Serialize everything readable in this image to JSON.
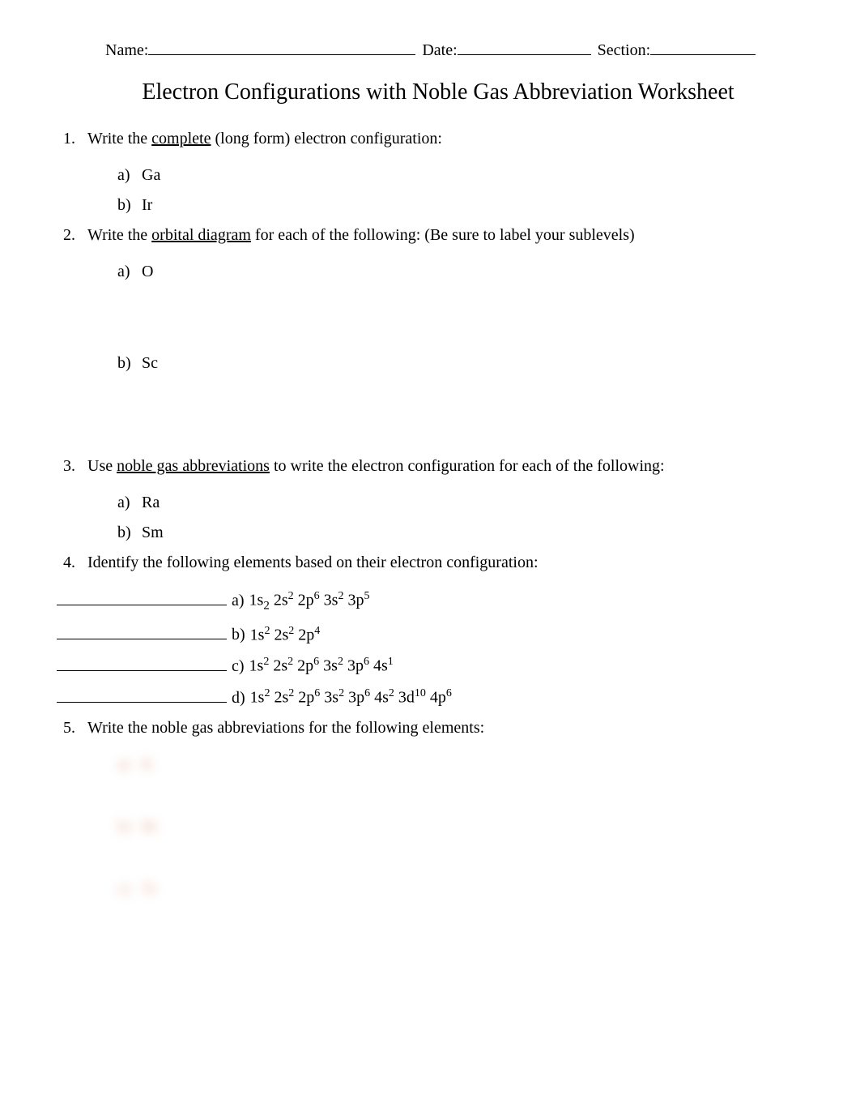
{
  "header": {
    "name_label": "Name:",
    "date_label": "Date:",
    "section_label": "Section:",
    "name_underline_width": 330,
    "date_underline_width": 165,
    "section_underline_width": 130
  },
  "title": "Electron Configurations with Noble Gas Abbreviation Worksheet",
  "q1": {
    "number": "1.",
    "text_pre": "Write the ",
    "text_underlined": "complete",
    "text_post": " (long form) electron configuration:",
    "items": [
      {
        "letter": "a)",
        "element": "Ga"
      },
      {
        "letter": "b)",
        "element": "Ir"
      }
    ]
  },
  "q2": {
    "number": "2.",
    "text_pre": "Write the ",
    "text_underlined": "orbital diagram",
    "text_post": "   for each of the following:  (Be sure to label your sublevels)",
    "items": [
      {
        "letter": "a)",
        "element": "O"
      },
      {
        "letter": "b)",
        "element": "Sc"
      }
    ]
  },
  "q3": {
    "number": "3.",
    "text_pre": "Use ",
    "text_underlined": "noble gas abbreviations",
    "text_post": "   to write the electron configuration for each of the following:",
    "items": [
      {
        "letter": "a)",
        "element": "Ra"
      },
      {
        "letter": "b)",
        "element": "Sm"
      }
    ]
  },
  "q4": {
    "number": "4.",
    "text": "Identify the following elements based on their electron configuration:",
    "items": [
      {
        "letter": "a)",
        "config_html": "1s<span class='sub2'>2</span> 2s<sup>2</sup> 2p<sup>6</sup> 3s<sup>2</sup> 3p<sup>5</sup>"
      },
      {
        "letter": "b)",
        "config_html": "1s<sup>2</sup> 2s<sup>2</sup> 2p<sup>4</sup>"
      },
      {
        "letter": "c)",
        "config_html": "1s<sup>2</sup> 2s<sup>2</sup> 2p<sup>6</sup> 3s<sup>2</sup> 3p<sup>6</sup> 4s<sup>1</sup>"
      },
      {
        "letter": "d)",
        "config_html": "1s<sup>2</sup> 2s<sup>2</sup> 2p<sup>6</sup> 3s<sup>2</sup> 3p<sup>6</sup> 4s<sup>2</sup> 3d<sup>10</sup> 4p<sup>6</sup>"
      }
    ]
  },
  "q5": {
    "number": "5.",
    "text": "Write the noble gas abbreviations for the following elements:",
    "items": [
      {
        "letter": "a)",
        "element": "K"
      },
      {
        "letter": "b)",
        "element": "Bi"
      },
      {
        "letter": "c)",
        "element": "Tc"
      }
    ]
  },
  "colors": {
    "background": "#ffffff",
    "text": "#000000",
    "blurred": "#d67a4a"
  },
  "typography": {
    "body_fontsize": 20,
    "title_fontsize": 28,
    "font_family": "Times New Roman"
  }
}
